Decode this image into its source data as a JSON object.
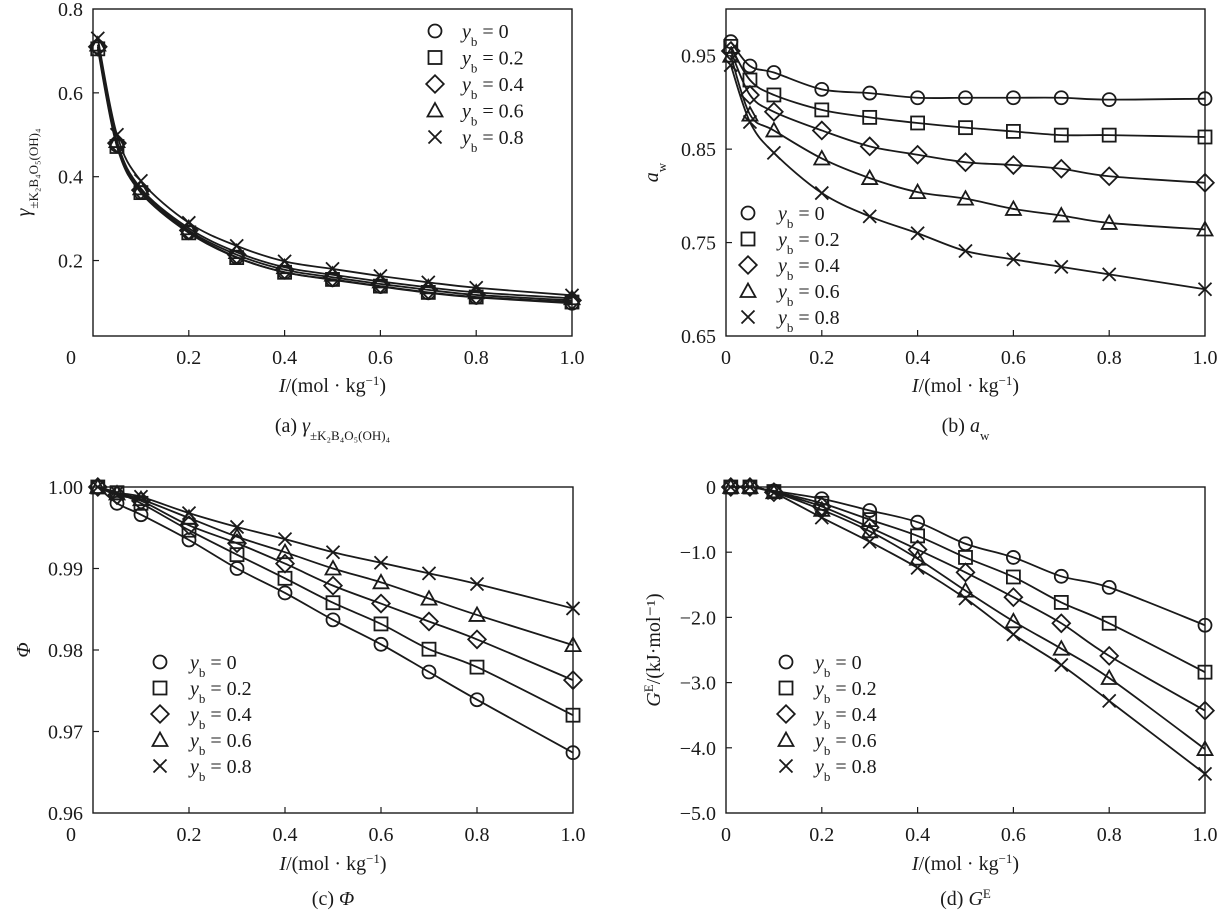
{
  "figure": {
    "series_names": [
      "y_b = 0",
      "y_b = 0.2",
      "y_b = 0.4",
      "y_b = 0.6",
      "y_b = 0.8"
    ]
  },
  "chart_data": [
    {
      "id": "a",
      "type": "line",
      "caption": "(a) γ±K2B4O5(OH)4",
      "caption_main": "(a) γ",
      "caption_sub": "±K₂B₄O₅(OH)₄",
      "xlabel": "I/(mol · kg⁻¹)",
      "ylabel": "γ±K2B4O5(OH)4",
      "ylabel_main": "γ",
      "ylabel_sub": "±K₂B₄O₅(OH)₄",
      "xlim": [
        0,
        1.0
      ],
      "ylim": [
        0.02,
        0.8
      ],
      "xticks": [
        0,
        0.2,
        0.4,
        0.6,
        0.8,
        1.0
      ],
      "xtick_labels": [
        "0",
        "0.2",
        "0.4",
        "0.6",
        "0.8",
        "1.0"
      ],
      "yticks": [
        0.2,
        0.4,
        0.6,
        0.8
      ],
      "ytick_labels": [
        "0.2",
        "0.4",
        "0.6",
        "0.8"
      ],
      "grid": false,
      "legend_position": "top-right",
      "x": [
        0.01,
        0.05,
        0.1,
        0.2,
        0.3,
        0.4,
        0.5,
        0.6,
        0.7,
        0.8,
        1.0
      ],
      "series": [
        {
          "name": "y_b = 0",
          "marker": "circle",
          "values": [
            0.71,
            0.475,
            0.362,
            0.268,
            0.208,
            0.172,
            0.154,
            0.138,
            0.123,
            0.112,
            0.098
          ]
        },
        {
          "name": "y_b = 0.2",
          "marker": "square",
          "values": [
            0.705,
            0.472,
            0.362,
            0.266,
            0.207,
            0.172,
            0.155,
            0.139,
            0.124,
            0.113,
            0.101
          ]
        },
        {
          "name": "y_b = 0.4",
          "marker": "diamond",
          "values": [
            0.71,
            0.48,
            0.368,
            0.272,
            0.214,
            0.178,
            0.16,
            0.144,
            0.13,
            0.118,
            0.105
          ]
        },
        {
          "name": "y_b = 0.6",
          "marker": "triangle",
          "values": [
            0.715,
            0.485,
            0.372,
            0.277,
            0.22,
            0.184,
            0.166,
            0.15,
            0.136,
            0.124,
            0.11
          ]
        },
        {
          "name": "y_b = 0.8",
          "marker": "cross",
          "values": [
            0.73,
            0.5,
            0.39,
            0.29,
            0.235,
            0.198,
            0.18,
            0.163,
            0.148,
            0.135,
            0.117
          ]
        }
      ]
    },
    {
      "id": "b",
      "type": "line",
      "caption": "(b) aw",
      "caption_main": "(b) a",
      "caption_sub": "w",
      "xlabel": "I/(mol · kg⁻¹)",
      "ylabel": "aw",
      "ylabel_main": "a",
      "ylabel_sub": "w",
      "xlim": [
        0,
        1.0
      ],
      "ylim": [
        0.65,
        1.0
      ],
      "xticks": [
        0,
        0.2,
        0.4,
        0.6,
        0.8,
        1.0
      ],
      "xtick_labels": [
        "0",
        "0.2",
        "0.4",
        "0.6",
        "0.8",
        "1.0"
      ],
      "yticks": [
        0.65,
        0.75,
        0.85,
        0.95
      ],
      "ytick_labels": [
        "0.65",
        "0.75",
        "0.85",
        "0.95"
      ],
      "grid": false,
      "legend_position": "bottom-left",
      "x": [
        0.01,
        0.05,
        0.1,
        0.2,
        0.3,
        0.4,
        0.5,
        0.6,
        0.7,
        0.8,
        1.0
      ],
      "series": [
        {
          "name": "y_b = 0",
          "marker": "circle",
          "values": [
            0.965,
            0.939,
            0.932,
            0.914,
            0.91,
            0.905,
            0.905,
            0.905,
            0.905,
            0.903,
            0.904
          ]
        },
        {
          "name": "y_b = 0.2",
          "marker": "square",
          "values": [
            0.96,
            0.924,
            0.908,
            0.892,
            0.884,
            0.878,
            0.873,
            0.869,
            0.865,
            0.865,
            0.863
          ]
        },
        {
          "name": "y_b = 0.4",
          "marker": "diamond",
          "values": [
            0.955,
            0.908,
            0.89,
            0.87,
            0.853,
            0.844,
            0.836,
            0.833,
            0.829,
            0.821,
            0.814
          ]
        },
        {
          "name": "y_b = 0.6",
          "marker": "triangle",
          "values": [
            0.95,
            0.887,
            0.87,
            0.84,
            0.819,
            0.804,
            0.797,
            0.786,
            0.779,
            0.771,
            0.764
          ]
        },
        {
          "name": "y_b = 0.8",
          "marker": "cross",
          "values": [
            0.94,
            0.879,
            0.846,
            0.803,
            0.778,
            0.76,
            0.741,
            0.732,
            0.724,
            0.716,
            0.7
          ]
        }
      ]
    },
    {
      "id": "c",
      "type": "line",
      "caption": "(c) Φ",
      "caption_main": "(c) Φ",
      "caption_sub": "",
      "xlabel": "I/(mol · kg⁻¹)",
      "ylabel": "Φ",
      "ylabel_main": "Φ",
      "ylabel_sub": "",
      "xlim": [
        0,
        1.0
      ],
      "ylim": [
        0.96,
        1.0
      ],
      "xticks": [
        0,
        0.2,
        0.4,
        0.6,
        0.8,
        1.0
      ],
      "xtick_labels": [
        "0",
        "0.2",
        "0.4",
        "0.6",
        "0.8",
        "1.0"
      ],
      "yticks": [
        0.96,
        0.97,
        0.98,
        0.99,
        1.0
      ],
      "ytick_labels": [
        "0.96",
        "0.97",
        "0.98",
        "0.99",
        "1.00"
      ],
      "grid": false,
      "legend_position": "bottom-left",
      "x": [
        0.01,
        0.05,
        0.1,
        0.2,
        0.3,
        0.4,
        0.5,
        0.6,
        0.7,
        0.8,
        1.0
      ],
      "series": [
        {
          "name": "y_b = 0",
          "marker": "circle",
          "values": [
            1.0,
            0.998,
            0.9966,
            0.9935,
            0.99,
            0.987,
            0.9837,
            0.9807,
            0.9773,
            0.9739,
            0.9674
          ]
        },
        {
          "name": "y_b = 0.2",
          "marker": "square",
          "values": [
            1.0,
            0.9993,
            0.998,
            0.9947,
            0.9917,
            0.9888,
            0.9858,
            0.9832,
            0.9801,
            0.9779,
            0.972
          ]
        },
        {
          "name": "y_b = 0.4",
          "marker": "diamond",
          "values": [
            1.0,
            0.999,
            0.9983,
            0.9953,
            0.9931,
            0.9906,
            0.9879,
            0.9857,
            0.9835,
            0.9813,
            0.9763
          ]
        },
        {
          "name": "y_b = 0.6",
          "marker": "triangle",
          "values": [
            1.0,
            0.9992,
            0.9985,
            0.9962,
            0.9939,
            0.992,
            0.99,
            0.9883,
            0.9863,
            0.9843,
            0.9806
          ]
        },
        {
          "name": "y_b = 0.8",
          "marker": "cross",
          "values": [
            1.0,
            0.9993,
            0.9988,
            0.9968,
            0.9951,
            0.9936,
            0.992,
            0.9907,
            0.9894,
            0.9881,
            0.9851
          ]
        }
      ]
    },
    {
      "id": "d",
      "type": "line",
      "caption": "(d) GE",
      "caption_main": "(d) G",
      "caption_sup": "E",
      "xlabel": "I/(mol · kg⁻¹)",
      "ylabel": "GE/(kJ·mol⁻¹)",
      "ylabel_main": "G",
      "ylabel_sup": "E",
      "ylabel_rest": "/(kJ·mol⁻¹)",
      "xlim": [
        0,
        1.0
      ],
      "ylim": [
        -5.0,
        0
      ],
      "xticks": [
        0,
        0.2,
        0.4,
        0.6,
        0.8,
        1.0
      ],
      "xtick_labels": [
        "0",
        "0.2",
        "0.4",
        "0.6",
        "0.8",
        "1.0"
      ],
      "yticks": [
        -5.0,
        -4.0,
        -3.0,
        -2.0,
        -1.0,
        0
      ],
      "ytick_labels": [
        "−5.0",
        "−4.0",
        "−3.0",
        "−2.0",
        "−1.0",
        "0"
      ],
      "grid": false,
      "legend_position": "bottom-left",
      "x": [
        0.01,
        0.05,
        0.1,
        0.2,
        0.3,
        0.4,
        0.5,
        0.6,
        0.7,
        0.8,
        1.0
      ],
      "series": [
        {
          "name": "y_b = 0",
          "marker": "circle",
          "values": [
            0,
            0,
            -0.06,
            -0.18,
            -0.36,
            -0.54,
            -0.87,
            -1.08,
            -1.37,
            -1.54,
            -2.12
          ]
        },
        {
          "name": "y_b = 0.2",
          "marker": "square",
          "values": [
            0,
            0,
            -0.07,
            -0.25,
            -0.5,
            -0.75,
            -1.08,
            -1.38,
            -1.77,
            -2.09,
            -2.84
          ]
        },
        {
          "name": "y_b = 0.4",
          "marker": "diamond",
          "values": [
            0,
            0,
            -0.08,
            -0.3,
            -0.62,
            -0.96,
            -1.31,
            -1.69,
            -2.09,
            -2.59,
            -3.43
          ]
        },
        {
          "name": "y_b = 0.6",
          "marker": "triangle",
          "values": [
            0,
            0,
            -0.08,
            -0.35,
            -0.68,
            -1.1,
            -1.59,
            -2.06,
            -2.48,
            -2.93,
            -4.02
          ]
        },
        {
          "name": "y_b = 0.8",
          "marker": "cross",
          "values": [
            0,
            0,
            -0.09,
            -0.47,
            -0.84,
            -1.24,
            -1.71,
            -2.26,
            -2.73,
            -3.28,
            -4.4
          ]
        }
      ]
    }
  ]
}
